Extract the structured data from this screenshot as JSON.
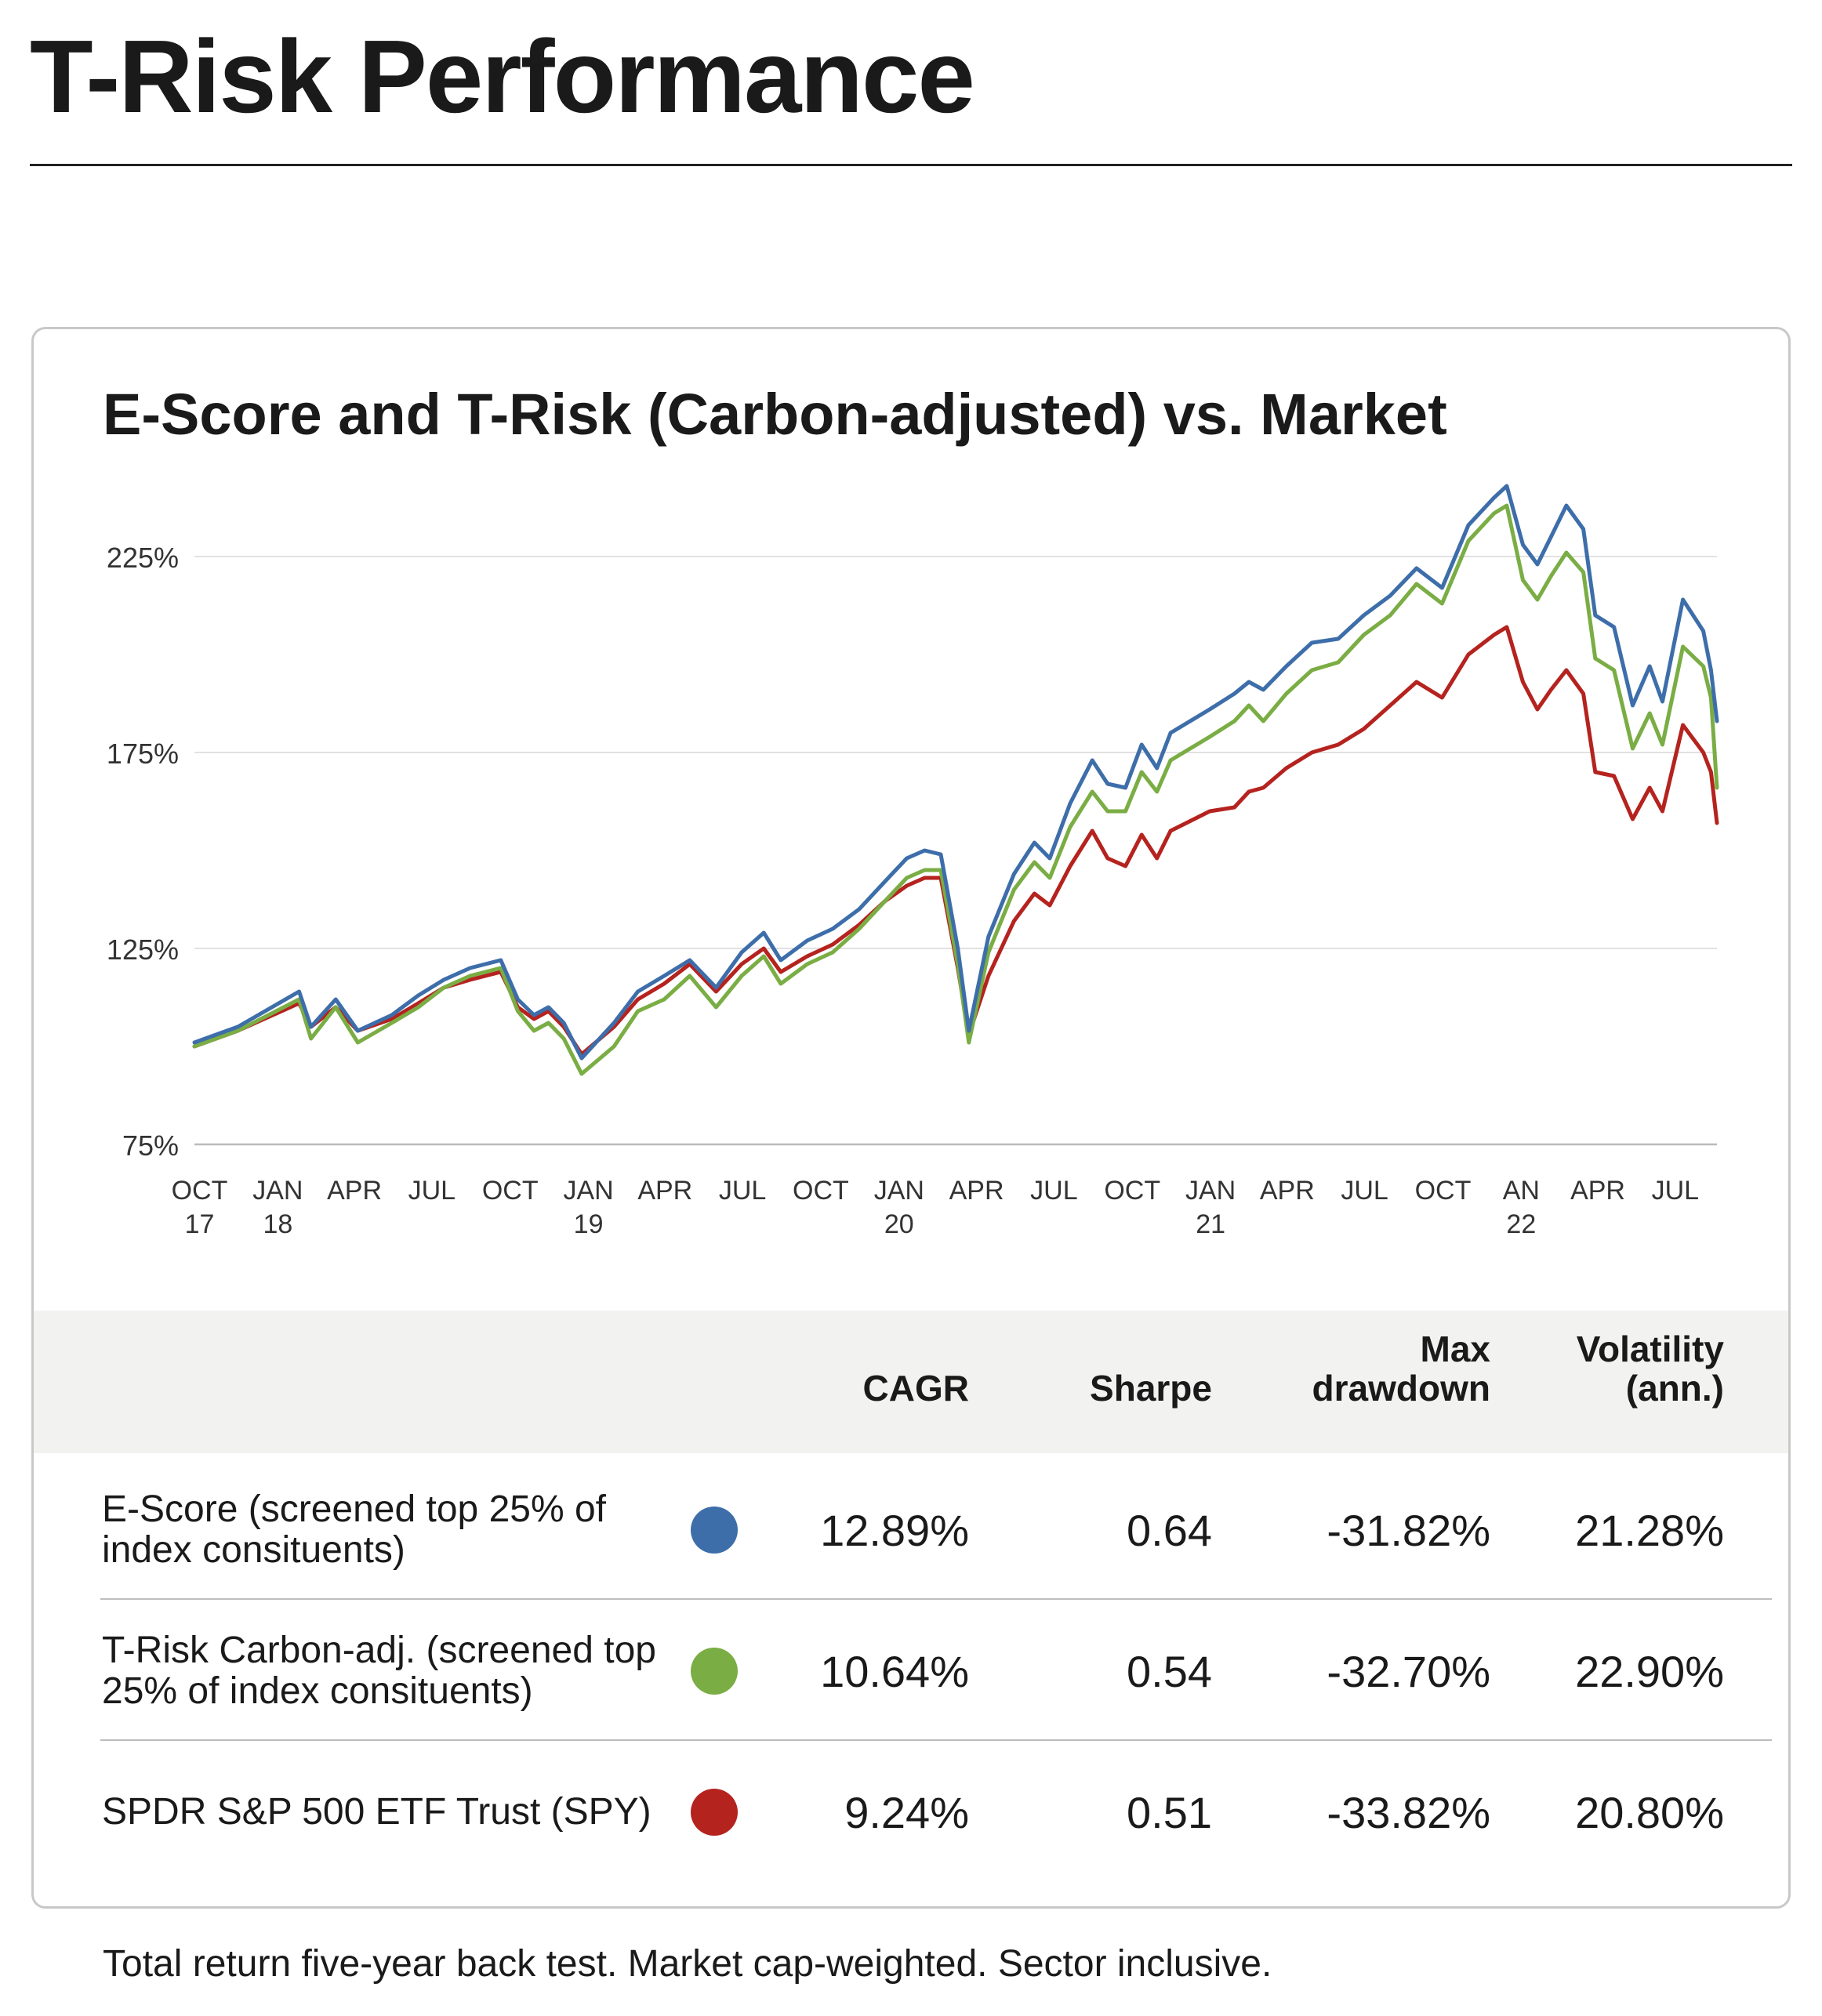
{
  "page": {
    "title": "T-Risk Performance",
    "footnote": "Total return five-year back test. Market cap-weighted. Sector inclusive."
  },
  "chart_data": {
    "type": "line",
    "title": "E-Score and T-Risk (Carbon-adjusted) vs. Market",
    "xlabel": "",
    "ylabel": "",
    "ylim": [
      75,
      250
    ],
    "yticks": [
      75,
      125,
      175,
      225
    ],
    "ytick_labels": [
      "75%",
      "125%",
      "175%",
      "225%"
    ],
    "xlim": [
      "2017-09-25",
      "2022-08-19"
    ],
    "xticks": [
      {
        "date": "2017-10-01",
        "line1": "OCT",
        "line2": "17"
      },
      {
        "date": "2018-01-01",
        "line1": "JAN",
        "line2": "18"
      },
      {
        "date": "2018-04-01",
        "line1": "APR",
        "line2": ""
      },
      {
        "date": "2018-07-01",
        "line1": "JUL",
        "line2": ""
      },
      {
        "date": "2018-10-01",
        "line1": "OCT",
        "line2": ""
      },
      {
        "date": "2019-01-01",
        "line1": "JAN",
        "line2": "19"
      },
      {
        "date": "2019-04-01",
        "line1": "APR",
        "line2": ""
      },
      {
        "date": "2019-07-01",
        "line1": "JUL",
        "line2": ""
      },
      {
        "date": "2019-10-01",
        "line1": "OCT",
        "line2": ""
      },
      {
        "date": "2020-01-01",
        "line1": "JAN",
        "line2": "20"
      },
      {
        "date": "2020-04-01",
        "line1": "APR",
        "line2": ""
      },
      {
        "date": "2020-07-01",
        "line1": "JUL",
        "line2": ""
      },
      {
        "date": "2020-10-01",
        "line1": "OCT",
        "line2": ""
      },
      {
        "date": "2021-01-01",
        "line1": "JAN",
        "line2": "21"
      },
      {
        "date": "2021-04-01",
        "line1": "APR",
        "line2": ""
      },
      {
        "date": "2021-07-01",
        "line1": "JUL",
        "line2": ""
      },
      {
        "date": "2021-10-01",
        "line1": "OCT",
        "line2": ""
      },
      {
        "date": "2022-01-01",
        "line1": "AN",
        "line2": "22"
      },
      {
        "date": "2022-04-01",
        "line1": "APR",
        "line2": ""
      },
      {
        "date": "2022-07-01",
        "line1": "JUL",
        "line2": ""
      }
    ],
    "grid": true,
    "legend": "table-below",
    "x": [
      "2017-09-25",
      "2017-11-15",
      "2018-01-26",
      "2018-02-09",
      "2018-03-10",
      "2018-04-05",
      "2018-05-15",
      "2018-06-15",
      "2018-07-15",
      "2018-08-15",
      "2018-09-20",
      "2018-10-10",
      "2018-10-29",
      "2018-11-15",
      "2018-12-03",
      "2018-12-24",
      "2019-01-31",
      "2019-02-28",
      "2019-03-31",
      "2019-04-30",
      "2019-05-31",
      "2019-06-30",
      "2019-07-26",
      "2019-08-15",
      "2019-09-15",
      "2019-10-15",
      "2019-11-15",
      "2019-12-15",
      "2020-01-10",
      "2020-01-31",
      "2020-02-19",
      "2020-03-10",
      "2020-03-23",
      "2020-04-15",
      "2020-05-15",
      "2020-06-08",
      "2020-06-26",
      "2020-07-20",
      "2020-08-15",
      "2020-09-02",
      "2020-09-23",
      "2020-10-12",
      "2020-10-30",
      "2020-11-15",
      "2020-12-31",
      "2021-01-29",
      "2021-02-15",
      "2021-03-04",
      "2021-03-31",
      "2021-04-30",
      "2021-05-31",
      "2021-06-30",
      "2021-07-31",
      "2021-08-31",
      "2021-09-30",
      "2021-10-31",
      "2021-11-30",
      "2021-12-15",
      "2022-01-03",
      "2022-01-20",
      "2022-02-05",
      "2022-02-23",
      "2022-03-15",
      "2022-03-29",
      "2022-04-20",
      "2022-05-12",
      "2022-06-01",
      "2022-06-16",
      "2022-07-10",
      "2022-08-03",
      "2022-08-12",
      "2022-08-19"
    ],
    "series": [
      {
        "name": "E-Score (screened top 25% of index consituents)",
        "color": "#3d6eaa",
        "values": [
          101,
          105,
          114,
          105,
          112,
          104,
          108,
          113,
          117,
          120,
          122,
          112,
          108,
          110,
          106,
          97,
          106,
          114,
          118,
          122,
          115,
          124,
          129,
          122,
          127,
          130,
          135,
          142,
          148,
          150,
          149,
          125,
          104,
          128,
          144,
          152,
          148,
          162,
          173,
          167,
          166,
          177,
          171,
          180,
          186,
          190,
          193,
          191,
          197,
          203,
          204,
          210,
          215,
          222,
          217,
          233,
          240,
          243,
          228,
          223,
          230,
          238,
          232,
          210,
          207,
          187,
          197,
          188,
          214,
          206,
          196,
          183
        ]
      },
      {
        "name": "T-Risk Carbon-adj. (screened top 25% of index consituents)",
        "color": "#7aad44",
        "values": [
          100,
          104,
          112,
          102,
          110,
          101,
          106,
          110,
          115,
          118,
          120,
          109,
          104,
          106,
          102,
          93,
          100,
          109,
          112,
          118,
          110,
          118,
          123,
          116,
          121,
          124,
          130,
          137,
          143,
          145,
          145,
          121,
          101,
          124,
          140,
          147,
          143,
          156,
          165,
          160,
          160,
          170,
          165,
          173,
          179,
          183,
          187,
          183,
          190,
          196,
          198,
          205,
          210,
          218,
          213,
          229,
          236,
          238,
          219,
          214,
          220,
          226,
          221,
          199,
          196,
          176,
          185,
          177,
          202,
          197,
          189,
          166
        ]
      },
      {
        "name": "SPDR S&P 500 ETF Trust (SPY)",
        "color": "#b5231f",
        "values": [
          100,
          104,
          111,
          105,
          110,
          104,
          107,
          111,
          115,
          117,
          119,
          110,
          107,
          109,
          105,
          98,
          105,
          112,
          116,
          121,
          114,
          121,
          125,
          119,
          123,
          126,
          131,
          137,
          141,
          143,
          143,
          120,
          103,
          118,
          132,
          139,
          136,
          146,
          155,
          148,
          146,
          154,
          148,
          155,
          160,
          161,
          165,
          166,
          171,
          175,
          177,
          181,
          187,
          193,
          189,
          200,
          205,
          207,
          193,
          186,
          191,
          196,
          190,
          170,
          169,
          158,
          166,
          160,
          182,
          175,
          170,
          157
        ]
      }
    ]
  },
  "table": {
    "headers": [
      "CAGR",
      "Sharpe",
      "Max\ndrawdown",
      "Volatility\n(ann.)"
    ],
    "rows": [
      {
        "label": "E-Score (screened top 25% of index consituents)",
        "color": "#3d6eaa",
        "cagr": "12.89%",
        "sharpe": "0.64",
        "max_drawdown": "-31.82%",
        "volatility": "21.28%"
      },
      {
        "label": "T-Risk Carbon-adj. (screened top 25% of index consituents)",
        "color": "#7aad44",
        "cagr": "10.64%",
        "sharpe": "0.54",
        "max_drawdown": "-32.70%",
        "volatility": "22.90%"
      },
      {
        "label": "SPDR S&P 500 ETF Trust (SPY)",
        "color": "#b5231f",
        "cagr": "9.24%",
        "sharpe": "0.51",
        "max_drawdown": "-33.82%",
        "volatility": "20.80%"
      }
    ]
  }
}
